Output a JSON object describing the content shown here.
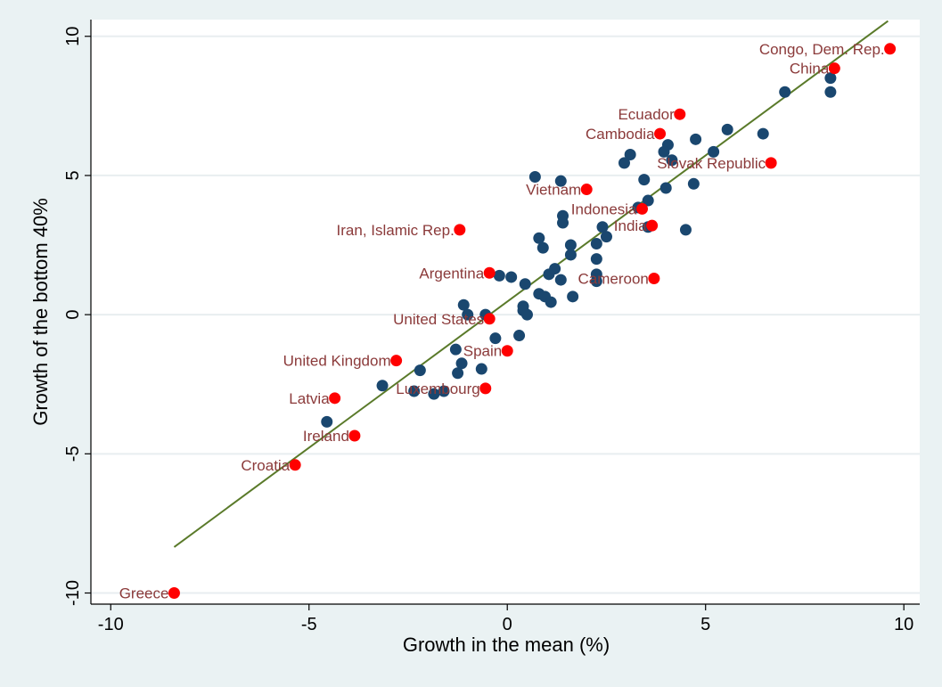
{
  "chart_data": {
    "type": "scatter",
    "title": "",
    "xlabel": "Growth in the mean (%)",
    "ylabel": "Growth of the bottom 40%",
    "xlim": [
      -10.5,
      10.4
    ],
    "ylim": [
      -10.4,
      10.6
    ],
    "x_ticks": [
      -10,
      -5,
      0,
      5,
      10
    ],
    "y_ticks": [
      -10,
      -5,
      0,
      5,
      10
    ],
    "grid": "horizontal",
    "legend": "none",
    "colors": {
      "background": "#eaf2f3",
      "plot_area": "#ffffff",
      "points": "#1a476f",
      "highlighted": "#ff0000",
      "fit_line": "#5a7a2a",
      "labels": "#8b3a3a"
    },
    "fit_line": {
      "x": [
        -8.4,
        9.6
      ],
      "y": [
        -8.35,
        10.55
      ]
    },
    "series": [
      {
        "values": [
          {
            "x": 8.15,
            "y": 8.5
          },
          {
            "x": 8.15,
            "y": 8.0
          },
          {
            "x": 7.0,
            "y": 8.0
          },
          {
            "x": 6.45,
            "y": 6.5
          },
          {
            "x": 5.55,
            "y": 6.65
          },
          {
            "x": 5.2,
            "y": 5.85
          },
          {
            "x": 4.75,
            "y": 6.3
          },
          {
            "x": 4.05,
            "y": 6.1
          },
          {
            "x": 3.95,
            "y": 5.85
          },
          {
            "x": 4.15,
            "y": 5.55
          },
          {
            "x": 4.7,
            "y": 4.7
          },
          {
            "x": 4.0,
            "y": 4.55
          },
          {
            "x": 3.45,
            "y": 4.85
          },
          {
            "x": 3.55,
            "y": 4.1
          },
          {
            "x": 3.3,
            "y": 3.85
          },
          {
            "x": 3.1,
            "y": 5.75
          },
          {
            "x": 2.95,
            "y": 5.45
          },
          {
            "x": 4.5,
            "y": 3.05
          },
          {
            "x": 3.55,
            "y": 3.15
          },
          {
            "x": 2.4,
            "y": 3.15
          },
          {
            "x": 2.5,
            "y": 2.8
          },
          {
            "x": 2.25,
            "y": 2.55
          },
          {
            "x": 2.25,
            "y": 2.0
          },
          {
            "x": 2.25,
            "y": 1.45
          },
          {
            "x": 2.25,
            "y": 1.2
          },
          {
            "x": 1.35,
            "y": 4.8
          },
          {
            "x": 0.7,
            "y": 4.95
          },
          {
            "x": 1.4,
            "y": 3.55
          },
          {
            "x": 1.4,
            "y": 3.3
          },
          {
            "x": 1.6,
            "y": 2.5
          },
          {
            "x": 1.6,
            "y": 2.15
          },
          {
            "x": 0.8,
            "y": 2.75
          },
          {
            "x": 0.9,
            "y": 2.4
          },
          {
            "x": 1.2,
            "y": 1.65
          },
          {
            "x": 1.05,
            "y": 1.45
          },
          {
            "x": 1.35,
            "y": 1.25
          },
          {
            "x": 0.8,
            "y": 0.75
          },
          {
            "x": 0.95,
            "y": 0.65
          },
          {
            "x": 1.1,
            "y": 0.45
          },
          {
            "x": 1.65,
            "y": 0.65
          },
          {
            "x": -0.2,
            "y": 1.4
          },
          {
            "x": 0.1,
            "y": 1.35
          },
          {
            "x": 0.45,
            "y": 1.1
          },
          {
            "x": 0.4,
            "y": 0.3
          },
          {
            "x": 0.4,
            "y": 0.15
          },
          {
            "x": 0.5,
            "y": 0.0
          },
          {
            "x": 0.3,
            "y": -0.75
          },
          {
            "x": -1.1,
            "y": 0.35
          },
          {
            "x": -1.0,
            "y": 0.0
          },
          {
            "x": -0.55,
            "y": 0.0
          },
          {
            "x": -0.3,
            "y": -0.85
          },
          {
            "x": -1.3,
            "y": -1.25
          },
          {
            "x": -1.15,
            "y": -1.75
          },
          {
            "x": -1.25,
            "y": -2.1
          },
          {
            "x": -2.2,
            "y": -2.0
          },
          {
            "x": -0.65,
            "y": -1.95
          },
          {
            "x": -3.15,
            "y": -2.55
          },
          {
            "x": -2.35,
            "y": -2.75
          },
          {
            "x": -1.85,
            "y": -2.85
          },
          {
            "x": -1.6,
            "y": -2.75
          },
          {
            "x": -4.55,
            "y": -3.85
          }
        ]
      },
      {
        "values": [
          {
            "x": 9.65,
            "y": 9.55,
            "label": "Congo, Dem. Rep."
          },
          {
            "x": 8.25,
            "y": 8.85,
            "label": "China"
          },
          {
            "x": 4.35,
            "y": 7.2,
            "label": "Ecuador"
          },
          {
            "x": 3.85,
            "y": 6.5,
            "label": "Cambodia"
          },
          {
            "x": 6.65,
            "y": 5.45,
            "label": "Slovak Republic"
          },
          {
            "x": 2.0,
            "y": 4.5,
            "label": "Vietnam"
          },
          {
            "x": 3.4,
            "y": 3.8,
            "label": "Indonesia"
          },
          {
            "x": 3.65,
            "y": 3.2,
            "label": "India"
          },
          {
            "x": -1.2,
            "y": 3.05,
            "label": "Iran, Islamic Rep."
          },
          {
            "x": -0.45,
            "y": 1.5,
            "label": "Argentina"
          },
          {
            "x": 3.7,
            "y": 1.3,
            "label": "Cameroon"
          },
          {
            "x": -0.45,
            "y": -0.15,
            "label": "United States"
          },
          {
            "x": 0.0,
            "y": -1.3,
            "label": "Spain"
          },
          {
            "x": -2.8,
            "y": -1.65,
            "label": "United Kingdom"
          },
          {
            "x": -0.55,
            "y": -2.65,
            "label": "Luxembourg"
          },
          {
            "x": -4.35,
            "y": -3.0,
            "label": "Latvia"
          },
          {
            "x": -3.85,
            "y": -4.35,
            "label": "Ireland"
          },
          {
            "x": -5.35,
            "y": -5.4,
            "label": "Croatia"
          },
          {
            "x": -8.4,
            "y": -10.0,
            "label": "Greece"
          }
        ]
      }
    ]
  }
}
